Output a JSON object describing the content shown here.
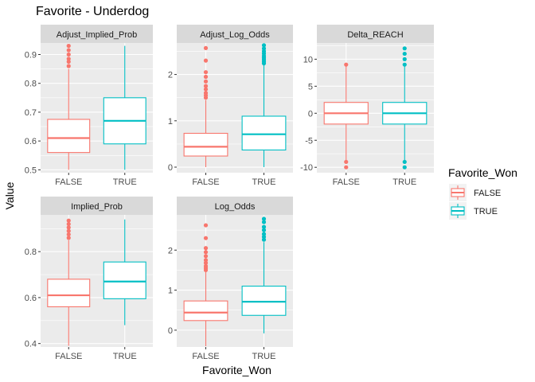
{
  "chart_data": {
    "type": "boxplot",
    "title": "Favorite - Underdog",
    "xlabel": "Favorite_Won",
    "ylabel": "Value",
    "categories": [
      "FALSE",
      "TRUE"
    ],
    "legend": {
      "title": "Favorite_Won",
      "placement": "right",
      "entries": [
        {
          "label": "FALSE",
          "color": "#F8766D"
        },
        {
          "label": "TRUE",
          "color": "#00BFC4"
        }
      ]
    },
    "grid": true,
    "facets": [
      {
        "name": "Adjust_Implied_Prob",
        "ylim": [
          0.49,
          0.94
        ],
        "ticks": [
          0.5,
          0.6,
          0.7,
          0.8,
          0.9
        ],
        "tick_labels": [
          "0.5",
          "0.6",
          "0.7",
          "0.8",
          "0.9"
        ],
        "boxes": [
          {
            "category": "FALSE",
            "min": 0.5,
            "q1": 0.56,
            "median": 0.61,
            "q3": 0.675,
            "max": 0.85,
            "outliers": [
              0.86,
              0.875,
              0.885,
              0.9,
              0.915,
              0.93
            ]
          },
          {
            "category": "TRUE",
            "min": 0.5,
            "q1": 0.59,
            "median": 0.67,
            "q3": 0.75,
            "max": 0.93,
            "outliers": []
          }
        ]
      },
      {
        "name": "Adjust_Log_Odds",
        "ylim": [
          -0.12,
          2.68
        ],
        "ticks": [
          0,
          1,
          2
        ],
        "tick_labels": [
          "0",
          "1",
          "2"
        ],
        "boxes": [
          {
            "category": "FALSE",
            "min": 0.0,
            "q1": 0.24,
            "median": 0.44,
            "q3": 0.73,
            "max": 1.45,
            "outliers": [
              1.5,
              1.55,
              1.6,
              1.68,
              1.75,
              1.85,
              1.95,
              2.05,
              2.3,
              2.57
            ]
          },
          {
            "category": "TRUE",
            "min": 0.0,
            "q1": 0.37,
            "median": 0.71,
            "q3": 1.1,
            "max": 2.2,
            "outliers": [
              2.24,
              2.28,
              2.32,
              2.36,
              2.4,
              2.45,
              2.5,
              2.56,
              2.63
            ]
          }
        ]
      },
      {
        "name": "Delta_REACH",
        "ylim": [
          -11,
          13
        ],
        "ticks": [
          -10,
          -5,
          0,
          5,
          10
        ],
        "tick_labels": [
          "-10",
          "-5",
          "0",
          "5",
          "10"
        ],
        "boxes": [
          {
            "category": "FALSE",
            "min": -9,
            "q1": -2,
            "median": 0,
            "q3": 2,
            "max": 9,
            "outliers": [
              -9,
              -10,
              9
            ]
          },
          {
            "category": "TRUE",
            "min": -9,
            "q1": -2,
            "median": 0,
            "q3": 2,
            "max": 9,
            "outliers": [
              -9,
              -10,
              9,
              10,
              11,
              12
            ]
          }
        ]
      },
      {
        "name": "Implied_Prob",
        "ylim": [
          0.385,
          0.96
        ],
        "ticks": [
          0.4,
          0.6,
          0.8
        ],
        "tick_labels": [
          "0.4",
          "0.6",
          "0.8"
        ],
        "boxes": [
          {
            "category": "FALSE",
            "min": 0.39,
            "q1": 0.56,
            "median": 0.61,
            "q3": 0.68,
            "max": 0.85,
            "outliers": [
              0.86,
              0.875,
              0.89,
              0.905,
              0.92,
              0.935
            ]
          },
          {
            "category": "TRUE",
            "min": 0.48,
            "q1": 0.595,
            "median": 0.67,
            "q3": 0.755,
            "max": 0.94,
            "outliers": []
          }
        ]
      },
      {
        "name": "Log_Odds",
        "ylim": [
          -0.42,
          2.88
        ],
        "ticks": [
          0,
          1,
          2
        ],
        "tick_labels": [
          "0",
          "1",
          "2"
        ],
        "boxes": [
          {
            "category": "FALSE",
            "min": -0.4,
            "q1": 0.24,
            "median": 0.44,
            "q3": 0.73,
            "max": 1.45,
            "outliers": [
              1.5,
              1.55,
              1.6,
              1.68,
              1.75,
              1.85,
              1.95,
              2.05,
              2.3,
              2.62
            ]
          },
          {
            "category": "TRUE",
            "min": -0.08,
            "q1": 0.37,
            "median": 0.71,
            "q3": 1.1,
            "max": 2.2,
            "outliers": [
              2.26,
              2.33,
              2.4,
              2.5,
              2.58,
              2.7,
              2.78
            ]
          }
        ]
      }
    ]
  }
}
